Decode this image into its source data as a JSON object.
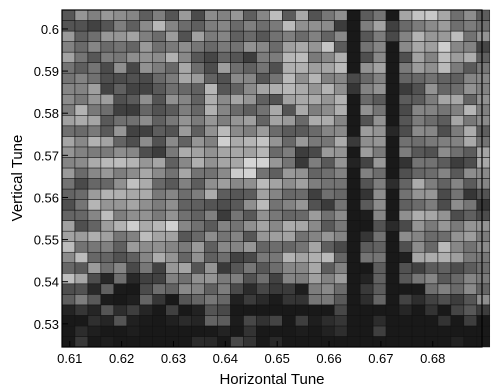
{
  "chart_data": {
    "type": "heatmap",
    "title": "",
    "xlabel": "Horizontal Tune",
    "ylabel": "Vertical Tune",
    "xlim": [
      0.6085,
      0.6895
    ],
    "ylim": [
      0.5245,
      0.6045
    ],
    "x_ticks": [
      "0.61",
      "0.62",
      "0.63",
      "0.64",
      "0.65",
      "0.66",
      "0.67",
      "0.68"
    ],
    "y_ticks": [
      "0.53",
      "0.54",
      "0.55",
      "0.56",
      "0.57",
      "0.58",
      "0.59",
      "0.6"
    ],
    "cell_step": 0.0025,
    "colormap": "grayscale (dark = low, light = high)",
    "grid": true,
    "value_range": [
      0,
      1
    ],
    "dark_columns_x": [
      0.665,
      0.6725
    ],
    "low_value_rows_y": [
      0.525,
      0.53,
      0.535,
      0.54
    ]
  }
}
